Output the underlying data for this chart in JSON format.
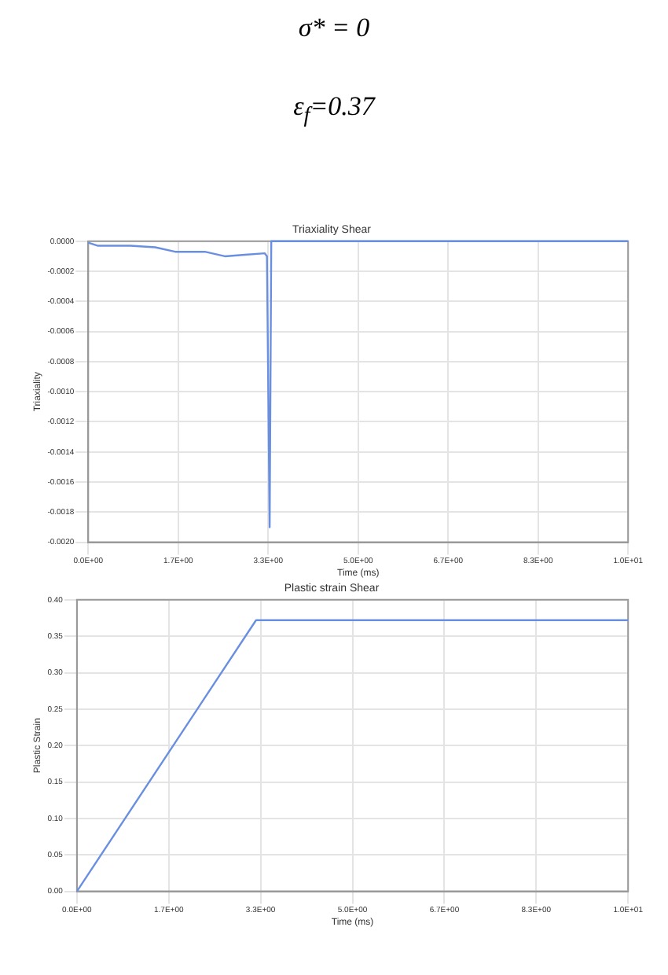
{
  "chart_data": [
    {
      "type": "line",
      "title": "Triaxiality Shear",
      "xlabel": "Time (ms)",
      "ylabel": "Triaxiality",
      "annotations": [
        "σ* = 0",
        "ε$_{f}$=0.37"
      ],
      "x": [
        0,
        0.18,
        0.78,
        1.24,
        1.61,
        2.16,
        2.53,
        2.9,
        3.27,
        3.31,
        3.36,
        3.39,
        10
      ],
      "series": [
        {
          "color": "#6a8fe0",
          "values": [
            -1e-05,
            -3e-05,
            -3e-05,
            -4e-05,
            -7e-05,
            -7e-05,
            -0.0001,
            -9e-05,
            -8e-05,
            -0.0001,
            -0.0019,
            0,
            0
          ]
        }
      ],
      "xlim": [
        0,
        10
      ],
      "xticks": [
        {
          "value": 0,
          "label": "0.0E+00"
        },
        {
          "value": 1.667,
          "label": "1.7E+00"
        },
        {
          "value": 3.333,
          "label": "3.3E+00"
        },
        {
          "value": 5,
          "label": "5.0E+00"
        },
        {
          "value": 6.667,
          "label": "6.7E+00"
        },
        {
          "value": 8.333,
          "label": "8.3E+00"
        },
        {
          "value": 10,
          "label": "1.0E+01"
        }
      ],
      "ylim": [
        -0.002,
        0
      ],
      "yticks": [
        {
          "value": -0.002,
          "label": "-0.0020"
        },
        {
          "value": -0.0018,
          "label": "-0.0018"
        },
        {
          "value": -0.0016,
          "label": "-0.0016"
        },
        {
          "value": -0.0014,
          "label": "-0.0014"
        },
        {
          "value": -0.0012,
          "label": "-0.0012"
        },
        {
          "value": -0.001,
          "label": "-0.0010"
        },
        {
          "value": -0.0008,
          "label": "-0.0008"
        },
        {
          "value": -0.0006,
          "label": "-0.0006"
        },
        {
          "value": -0.0004,
          "label": "-0.0004"
        },
        {
          "value": -0.0002,
          "label": "-0.0002"
        },
        {
          "value": 0,
          "label": "0.0000"
        }
      ],
      "grid": true,
      "legend": false,
      "marker": "none",
      "line_style": "solid"
    },
    {
      "type": "line",
      "title": "Plastic strain Shear",
      "xlabel": "Time (ms)",
      "ylabel": "Plastic Strain",
      "x": [
        0,
        3.25,
        10
      ],
      "series": [
        {
          "color": "#6a8fe0",
          "values": [
            0,
            0.372,
            0.372
          ]
        }
      ],
      "xlim": [
        0,
        10
      ],
      "xticks": [
        {
          "value": 0,
          "label": "0.0E+00"
        },
        {
          "value": 1.667,
          "label": "1.7E+00"
        },
        {
          "value": 3.333,
          "label": "3.3E+00"
        },
        {
          "value": 5,
          "label": "5.0E+00"
        },
        {
          "value": 6.667,
          "label": "6.7E+00"
        },
        {
          "value": 8.333,
          "label": "8.3E+00"
        },
        {
          "value": 10,
          "label": "1.0E+01"
        }
      ],
      "ylim": [
        0,
        0.4
      ],
      "yticks": [
        {
          "value": 0,
          "label": "0.00"
        },
        {
          "value": 0.05,
          "label": "0.05"
        },
        {
          "value": 0.1,
          "label": "0.10"
        },
        {
          "value": 0.15,
          "label": "0.15"
        },
        {
          "value": 0.2,
          "label": "0.20"
        },
        {
          "value": 0.25,
          "label": "0.25"
        },
        {
          "value": 0.3,
          "label": "0.30"
        },
        {
          "value": 0.35,
          "label": "0.35"
        },
        {
          "value": 0.4,
          "label": "0.40"
        }
      ],
      "grid": true,
      "legend": false,
      "marker": "none",
      "line_style": "solid"
    }
  ]
}
